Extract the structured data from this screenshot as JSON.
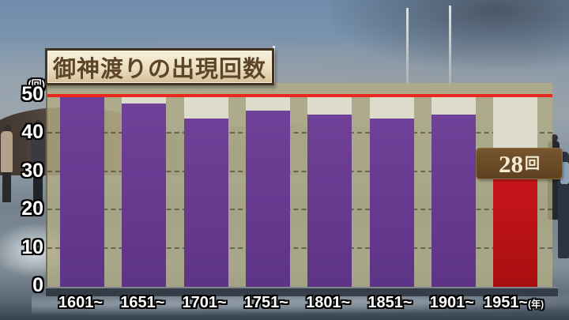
{
  "title": "御神渡りの出現回数",
  "y_axis": {
    "unit": "(回)",
    "ticks": [
      50,
      40,
      30,
      20,
      10,
      0
    ]
  },
  "x_axis": {
    "unit": "(年)"
  },
  "annotation": {
    "value": "28",
    "unit": "回"
  },
  "colors": {
    "bar": "#6f4198",
    "bar_gradient_bottom": "#5e3487",
    "highlight_bar": "#c8151a",
    "reference_line": "#e8291d",
    "cap": "#e2dfd3",
    "plot_background": "#b4ad84",
    "title_text": "#5d4527",
    "badge_background": "#6b4b27"
  },
  "chart_data": {
    "type": "bar",
    "title": "御神渡りの出現回数",
    "categories": [
      "1601~",
      "1651~",
      "1701~",
      "1751~",
      "1801~",
      "1851~",
      "1901~",
      "1951~"
    ],
    "values": [
      50,
      48,
      44,
      46,
      45,
      44,
      45,
      28
    ],
    "highlight_index": 7,
    "highlight_label": "28回",
    "ylabel": "(回)",
    "xlabel": "(年)",
    "ylim": [
      0,
      50
    ],
    "reference_line_y": 50,
    "gridlines": [
      10,
      20,
      30,
      40
    ],
    "legend": null,
    "grid": true
  }
}
